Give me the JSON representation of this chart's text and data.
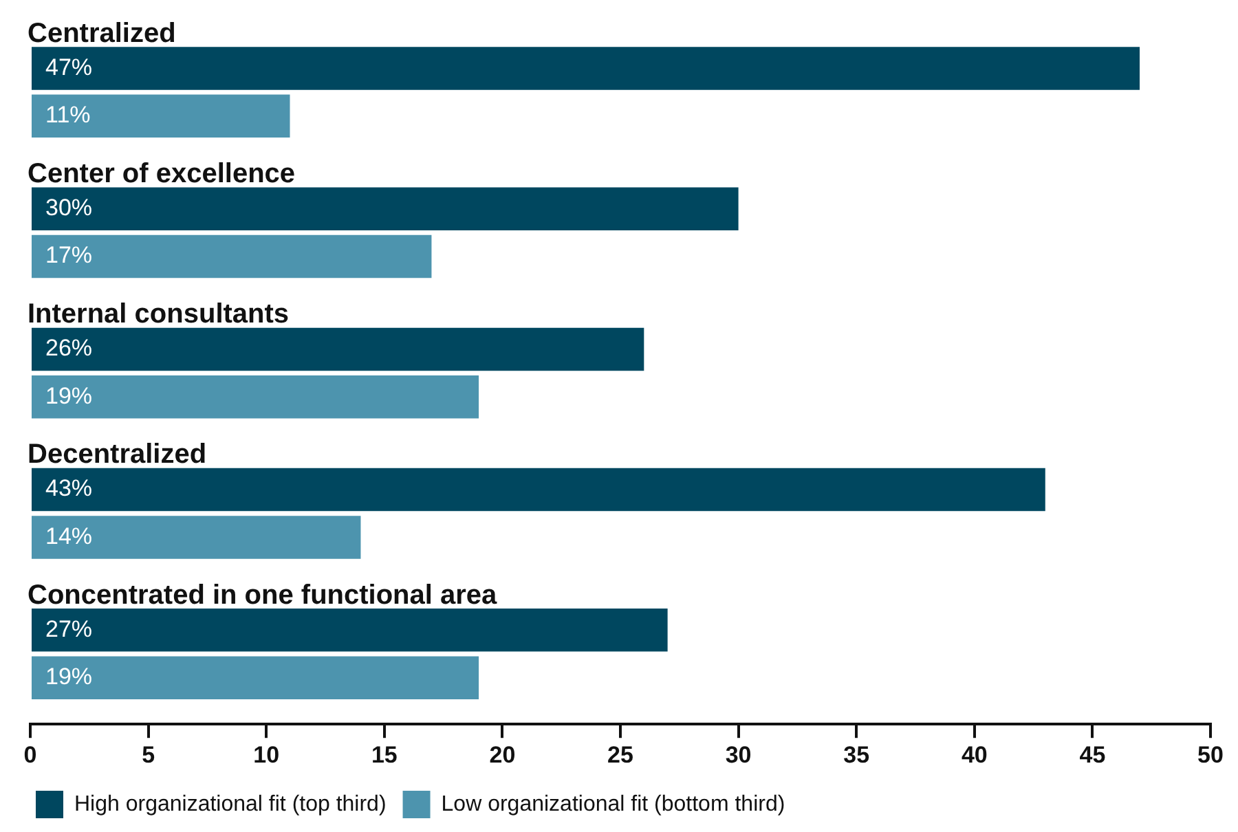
{
  "chart_data": {
    "type": "bar",
    "orientation": "horizontal",
    "categories": [
      "Centralized",
      "Center of excellence",
      "Internal consultants",
      "Decentralized",
      "Concentrated in one functional area"
    ],
    "series": [
      {
        "name": "High organizational fit (top third)",
        "color": "#00475f",
        "values": [
          47,
          30,
          26,
          43,
          27
        ],
        "value_labels": [
          "47%",
          "30%",
          "26%",
          "43%",
          "27%"
        ]
      },
      {
        "name": "Low organizational fit (bottom third)",
        "color": "#4d94ae",
        "values": [
          11,
          17,
          19,
          14,
          19
        ],
        "value_labels": [
          "11%",
          "17%",
          "19%",
          "14%",
          "19%"
        ]
      }
    ],
    "xlim": [
      0,
      50
    ],
    "xticks": [
      0,
      5,
      10,
      15,
      20,
      25,
      30,
      35,
      40,
      45,
      50
    ],
    "grid": false,
    "legend": "bottom left"
  }
}
